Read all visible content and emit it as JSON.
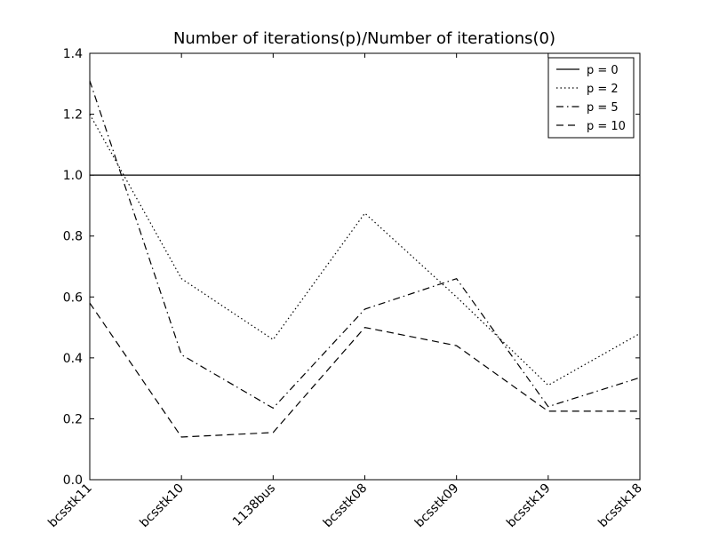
{
  "chart_data": {
    "type": "line",
    "title": "Number of iterations(p)/Number of iterations(0)",
    "xlabel": "",
    "ylabel": "",
    "categories": [
      "bcsstk11",
      "bcsstk10",
      "1138bus",
      "bcsstk08",
      "bcsstk09",
      "bcsstk19",
      "bcsstk18"
    ],
    "ylim": [
      0.0,
      1.4
    ],
    "yticks": [
      "0.0",
      "0.2",
      "0.4",
      "0.6",
      "0.8",
      "1.0",
      "1.2",
      "1.4"
    ],
    "grid": false,
    "legend_position": "top-right",
    "series": [
      {
        "name": "p = 0",
        "style": "solid",
        "values": [
          1.0,
          1.0,
          1.0,
          1.0,
          1.0,
          1.0,
          1.0
        ]
      },
      {
        "name": "p = 2",
        "style": "dotted",
        "values": [
          1.2,
          0.66,
          0.46,
          0.875,
          0.6,
          0.31,
          0.48
        ]
      },
      {
        "name": "p = 5",
        "style": "dashdot",
        "values": [
          1.31,
          0.41,
          0.235,
          0.56,
          0.66,
          0.24,
          0.335
        ]
      },
      {
        "name": "p = 10",
        "style": "dashed",
        "values": [
          0.58,
          0.14,
          0.155,
          0.5,
          0.44,
          0.225,
          0.225
        ]
      }
    ]
  }
}
